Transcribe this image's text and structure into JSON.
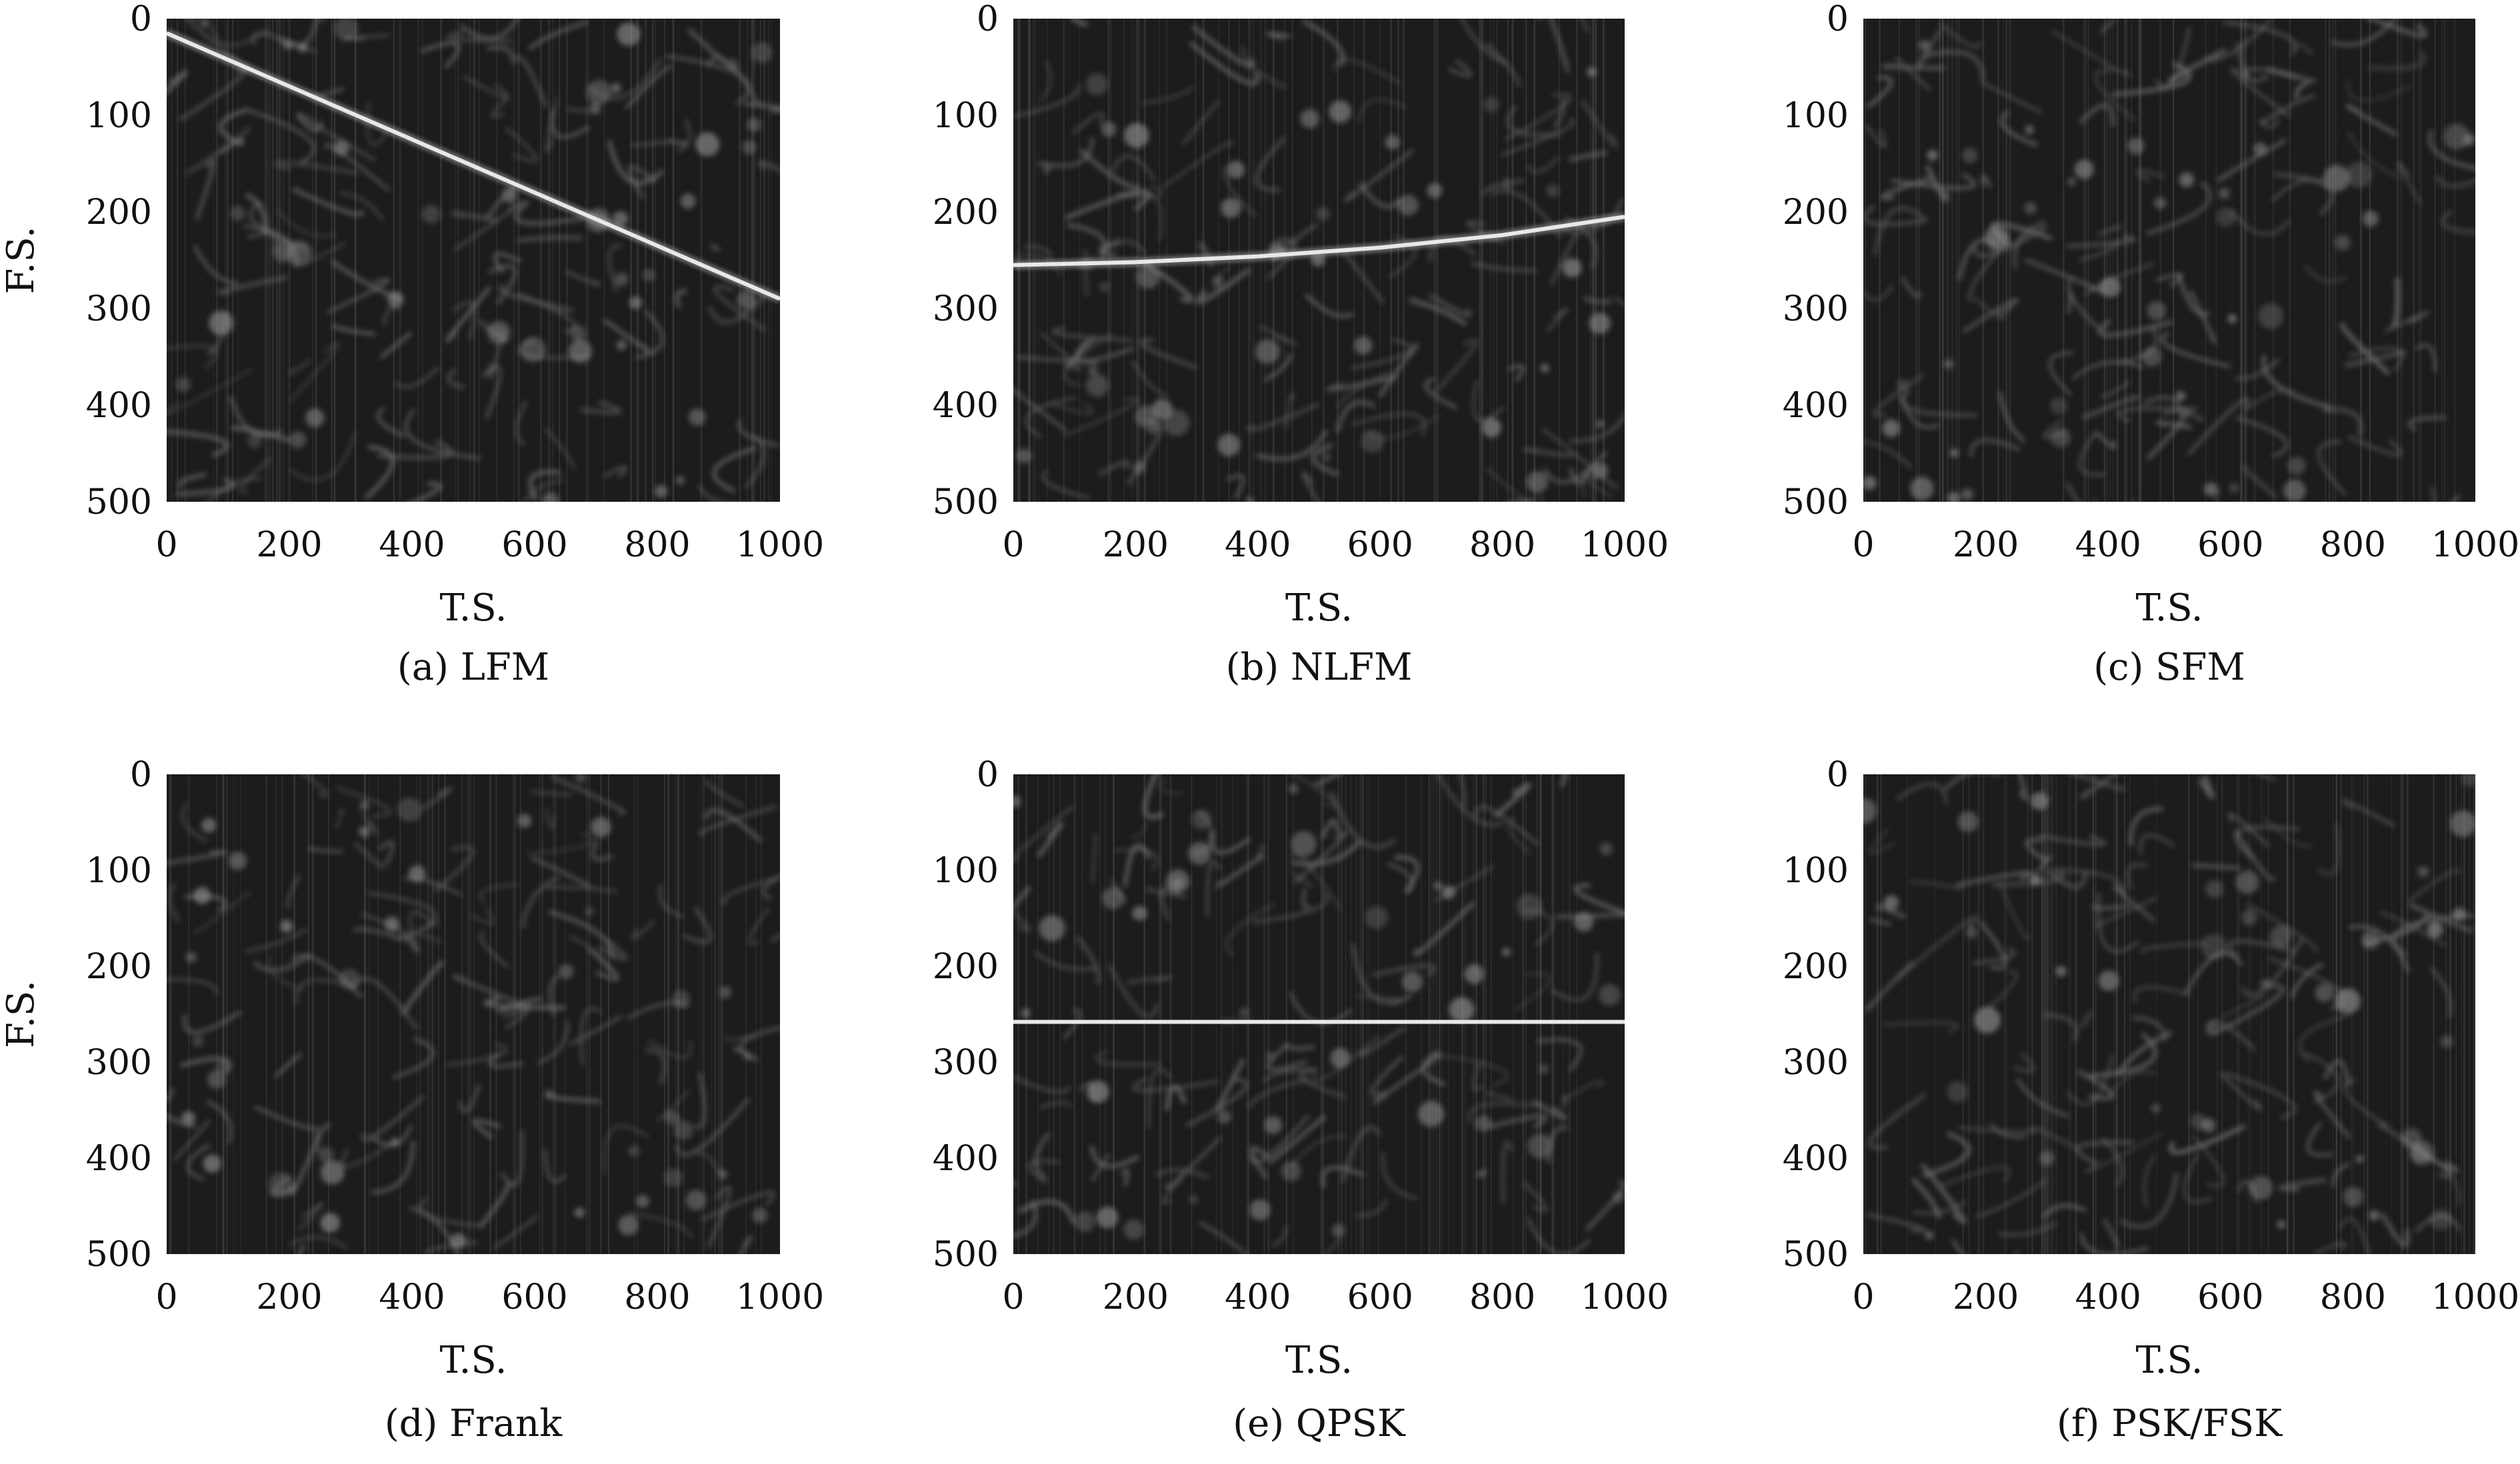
{
  "figure": {
    "background": "#ffffff",
    "plot_background": "#1c1c1c",
    "ridge_color": "#e8e8e8",
    "texture_color": "#7a7a7a"
  },
  "chart_data": [
    {
      "type": "heatmap",
      "caption": "(a) LFM",
      "xlabel": "T.S.",
      "ylabel": "F.S.",
      "xlim": [
        0,
        1000
      ],
      "ylim": [
        0,
        500
      ],
      "y_inverted": true,
      "x_ticks": [
        0,
        200,
        400,
        600,
        800,
        1000
      ],
      "y_ticks": [
        0,
        100,
        200,
        300,
        400,
        500
      ],
      "ridge": {
        "x": [
          0,
          200,
          400,
          600,
          800,
          1000
        ],
        "y": [
          15,
          70,
          125,
          180,
          235,
          290
        ]
      }
    },
    {
      "type": "heatmap",
      "caption": "(b) NLFM",
      "xlabel": "T.S.",
      "ylabel": "",
      "xlim": [
        0,
        1000
      ],
      "ylim": [
        0,
        500
      ],
      "y_inverted": true,
      "x_ticks": [
        0,
        200,
        400,
        600,
        800,
        1000
      ],
      "y_ticks": [
        0,
        100,
        200,
        300,
        400,
        500
      ],
      "ridge": {
        "x": [
          0,
          200,
          400,
          600,
          800,
          1000
        ],
        "y": [
          255,
          252,
          246,
          237,
          224,
          205
        ]
      }
    },
    {
      "type": "heatmap",
      "caption": "(c) SFM",
      "xlabel": "T.S.",
      "ylabel": "",
      "xlim": [
        0,
        1000
      ],
      "ylim": [
        0,
        500
      ],
      "y_inverted": true,
      "x_ticks": [
        0,
        200,
        400,
        600,
        800,
        1000
      ],
      "y_ticks": [
        0,
        100,
        200,
        300,
        400,
        500
      ],
      "ridge": null
    },
    {
      "type": "heatmap",
      "caption": "(d) Frank",
      "xlabel": "T.S.",
      "ylabel": "F.S.",
      "xlim": [
        0,
        1000
      ],
      "ylim": [
        0,
        500
      ],
      "y_inverted": true,
      "x_ticks": [
        0,
        200,
        400,
        600,
        800,
        1000
      ],
      "y_ticks": [
        0,
        100,
        200,
        300,
        400,
        500
      ],
      "ridge": null
    },
    {
      "type": "heatmap",
      "caption": "(e) QPSK",
      "xlabel": "T.S.",
      "ylabel": "",
      "xlim": [
        0,
        1000
      ],
      "ylim": [
        0,
        500
      ],
      "y_inverted": true,
      "x_ticks": [
        0,
        200,
        400,
        600,
        800,
        1000
      ],
      "y_ticks": [
        0,
        100,
        200,
        300,
        400,
        500
      ],
      "ridge": {
        "x": [
          0,
          1000
        ],
        "y": [
          258,
          258
        ]
      }
    },
    {
      "type": "heatmap",
      "caption": "(f) PSK/FSK",
      "xlabel": "T.S.",
      "ylabel": "",
      "xlim": [
        0,
        1000
      ],
      "ylim": [
        0,
        500
      ],
      "y_inverted": true,
      "x_ticks": [
        0,
        200,
        400,
        600,
        800,
        1000
      ],
      "y_ticks": [
        0,
        100,
        200,
        300,
        400,
        500
      ],
      "ridge": null
    }
  ]
}
